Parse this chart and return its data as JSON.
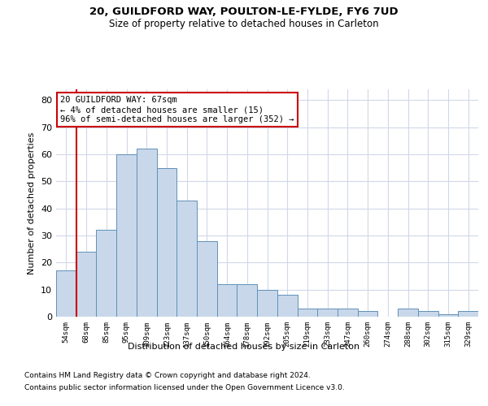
{
  "title1": "20, GUILDFORD WAY, POULTON-LE-FYLDE, FY6 7UD",
  "title2": "Size of property relative to detached houses in Carleton",
  "xlabel": "Distribution of detached houses by size in Carleton",
  "ylabel": "Number of detached properties",
  "categories": [
    "54sqm",
    "68sqm",
    "85sqm",
    "95sqm",
    "109sqm",
    "123sqm",
    "137sqm",
    "150sqm",
    "164sqm",
    "178sqm",
    "192sqm",
    "205sqm",
    "219sqm",
    "233sqm",
    "247sqm",
    "260sqm",
    "274sqm",
    "288sqm",
    "302sqm",
    "315sqm",
    "329sqm"
  ],
  "values": [
    17,
    24,
    32,
    60,
    62,
    55,
    43,
    28,
    12,
    12,
    10,
    8,
    3,
    3,
    3,
    2,
    0,
    3,
    2,
    1,
    2
  ],
  "bar_color": "#c8d8ea",
  "bar_edge_color": "#6090b8",
  "vline_color": "#cc0000",
  "annotation_text": "20 GUILDFORD WAY: 67sqm\n← 4% of detached houses are smaller (15)\n96% of semi-detached houses are larger (352) →",
  "annotation_box_color": "#ffffff",
  "annotation_box_edge": "#cc0000",
  "ylim": [
    0,
    84
  ],
  "yticks": [
    0,
    10,
    20,
    30,
    40,
    50,
    60,
    70,
    80
  ],
  "footer1": "Contains HM Land Registry data © Crown copyright and database right 2024.",
  "footer2": "Contains public sector information licensed under the Open Government Licence v3.0.",
  "bg_color": "#ffffff",
  "plot_bg_color": "#ffffff",
  "grid_color": "#d0d8e8"
}
